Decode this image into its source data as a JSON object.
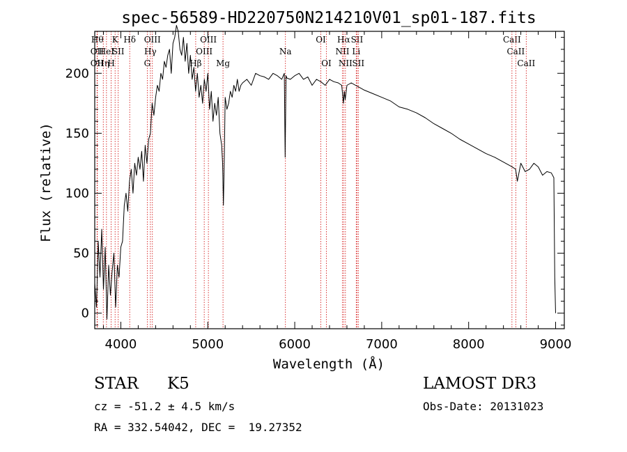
{
  "chart_data": {
    "type": "line",
    "title": "spec-56589-HD220750N214210V01_sp01-187.fits",
    "xlabel": "Wavelength (Å)",
    "ylabel": "Flux (relative)",
    "xlim": [
      3700,
      9100
    ],
    "ylim": [
      -13,
      235
    ],
    "xticks": [
      4000,
      5000,
      6000,
      7000,
      8000,
      9000
    ],
    "yticks": [
      0,
      50,
      100,
      150,
      200
    ],
    "grid": false,
    "series": [
      {
        "x": [
          3700,
          3720,
          3740,
          3760,
          3780,
          3800,
          3820,
          3840,
          3860,
          3880,
          3900,
          3920,
          3940,
          3960,
          3980,
          4000,
          4020,
          4040,
          4060,
          4080,
          4100,
          4120,
          4140,
          4160,
          4180,
          4200,
          4220,
          4240,
          4260,
          4280,
          4300,
          4320,
          4340,
          4360,
          4380,
          4400,
          4420,
          4440,
          4460,
          4480,
          4500,
          4520,
          4540,
          4560,
          4580,
          4600,
          4620,
          4640,
          4660,
          4680,
          4700,
          4720,
          4740,
          4760,
          4780,
          4800,
          4820,
          4840,
          4860,
          4880,
          4900,
          4920,
          4940,
          4960,
          4980,
          5000,
          5020,
          5040,
          5060,
          5080,
          5100,
          5120,
          5140,
          5160,
          5170,
          5180,
          5190,
          5200,
          5220,
          5240,
          5260,
          5280,
          5300,
          5320,
          5340,
          5360,
          5380,
          5400,
          5450,
          5500,
          5550,
          5600,
          5650,
          5700,
          5750,
          5800,
          5850,
          5880,
          5890,
          5900,
          5910,
          5950,
          6000,
          6050,
          6100,
          6150,
          6200,
          6250,
          6300,
          6350,
          6400,
          6450,
          6500,
          6540,
          6560,
          6570,
          6580,
          6600,
          6650,
          6700,
          6750,
          6800,
          6900,
          7000,
          7100,
          7200,
          7300,
          7400,
          7500,
          7600,
          7700,
          7800,
          7900,
          8000,
          8100,
          8200,
          8300,
          8400,
          8500,
          8540,
          8560,
          8600,
          8650,
          8700,
          8750,
          8800,
          8850,
          8900,
          8950,
          8980,
          8990,
          9000
        ],
        "y": [
          25,
          5,
          60,
          30,
          70,
          20,
          55,
          -5,
          40,
          15,
          35,
          50,
          5,
          40,
          30,
          55,
          60,
          90,
          100,
          85,
          110,
          120,
          100,
          125,
          115,
          130,
          120,
          135,
          110,
          140,
          125,
          145,
          150,
          175,
          165,
          180,
          190,
          185,
          200,
          195,
          210,
          205,
          215,
          220,
          200,
          225,
          230,
          240,
          235,
          220,
          215,
          230,
          210,
          225,
          200,
          215,
          195,
          205,
          185,
          200,
          180,
          190,
          175,
          195,
          185,
          200,
          170,
          185,
          160,
          175,
          165,
          180,
          150,
          140,
          125,
          90,
          130,
          180,
          170,
          175,
          185,
          180,
          190,
          185,
          195,
          185,
          190,
          192,
          195,
          190,
          200,
          198,
          197,
          195,
          200,
          198,
          195,
          200,
          130,
          198,
          196,
          195,
          198,
          200,
          195,
          197,
          190,
          195,
          193,
          190,
          195,
          193,
          192,
          190,
          175,
          185,
          178,
          190,
          192,
          190,
          188,
          186,
          183,
          180,
          177,
          172,
          170,
          167,
          163,
          158,
          154,
          150,
          145,
          141,
          137,
          133,
          130,
          126,
          122,
          120,
          110,
          125,
          118,
          120,
          125,
          122,
          115,
          118,
          117,
          113,
          30,
          0
        ]
      }
    ],
    "line_markers": [
      {
        "wavelength": 3730,
        "row": 0,
        "label": "Hθ"
      },
      {
        "wavelength": 3727,
        "row": 1,
        "label": "OII"
      },
      {
        "wavelength": 3727,
        "row": 2,
        "label": "OII"
      },
      {
        "wavelength": 3798,
        "row": 2,
        "label": "Hη"
      },
      {
        "wavelength": 3835,
        "row": 1,
        "label": "HeI"
      },
      {
        "wavelength": 3889,
        "row": 2,
        "label": "H"
      },
      {
        "wavelength": 3934,
        "row": 0,
        "label": "K"
      },
      {
        "wavelength": 3970,
        "row": 1,
        "label": "SII"
      },
      {
        "wavelength": 4102,
        "row": 0,
        "label": "Hδ"
      },
      {
        "wavelength": 4304,
        "row": 2,
        "label": "G"
      },
      {
        "wavelength": 4340,
        "row": 1,
        "label": "Hγ"
      },
      {
        "wavelength": 4363,
        "row": 0,
        "label": "OIII"
      },
      {
        "wavelength": 4861,
        "row": 2,
        "label": "Hβ"
      },
      {
        "wavelength": 4959,
        "row": 1,
        "label": "OIII"
      },
      {
        "wavelength": 5007,
        "row": 0,
        "label": "OIII"
      },
      {
        "wavelength": 5175,
        "row": 2,
        "label": "Mg"
      },
      {
        "wavelength": 5893,
        "row": 1,
        "label": "Na"
      },
      {
        "wavelength": 6300,
        "row": 0,
        "label": "OI"
      },
      {
        "wavelength": 6364,
        "row": 2,
        "label": "OI"
      },
      {
        "wavelength": 6548,
        "row": 1,
        "label": "NII"
      },
      {
        "wavelength": 6563,
        "row": 0,
        "label": "Hα"
      },
      {
        "wavelength": 6583,
        "row": 2,
        "label": "NII"
      },
      {
        "wavelength": 6707,
        "row": 1,
        "label": "Li"
      },
      {
        "wavelength": 6716,
        "row": 0,
        "label": "SII"
      },
      {
        "wavelength": 6731,
        "row": 2,
        "label": "SII"
      },
      {
        "wavelength": 8498,
        "row": 0,
        "label": "CaII"
      },
      {
        "wavelength": 8542,
        "row": 1,
        "label": "CaII"
      },
      {
        "wavelength": 8662,
        "row": 2,
        "label": "CaII"
      }
    ]
  },
  "info": {
    "class_label": "STAR",
    "subclass": "K5",
    "cz": "cz = -51.2 ± 4.5 km/s",
    "coords": "RA = 332.54042, DEC =  19.27352",
    "survey": "LAMOST DR3",
    "obs_date": "Obs-Date: 20131023"
  }
}
